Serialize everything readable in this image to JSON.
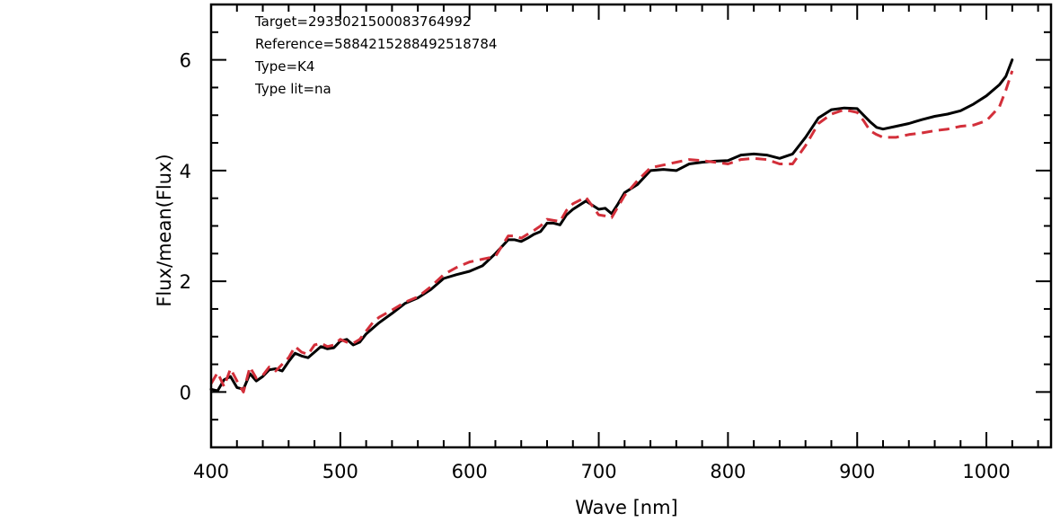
{
  "chart_data": {
    "type": "line",
    "title": "",
    "xlabel": "Wave [nm]",
    "ylabel": "Flux/mean(Flux)",
    "xlim": [
      400,
      1050
    ],
    "ylim": [
      -1,
      7
    ],
    "x_major_ticks": [
      400,
      500,
      600,
      700,
      800,
      900,
      1000
    ],
    "x_tick_labels": [
      "400",
      "500",
      "600",
      "700",
      "800",
      "900",
      "1000"
    ],
    "x_minor_step": 20,
    "y_major_ticks": [
      0,
      2,
      4,
      6
    ],
    "y_tick_labels": [
      "0",
      "2",
      "4",
      "6"
    ],
    "y_minor_step": 0.5,
    "grid": false,
    "annotations": [
      "Target=2935021500083764992",
      "Reference=5884215288492518784",
      "Type=K4",
      "Type lit=na"
    ],
    "series": [
      {
        "style": "solid",
        "color": "#000000",
        "x": [
          400,
          405,
          410,
          415,
          420,
          425,
          430,
          435,
          440,
          445,
          450,
          455,
          460,
          465,
          470,
          475,
          480,
          485,
          490,
          495,
          500,
          505,
          510,
          515,
          520,
          525,
          530,
          540,
          550,
          560,
          570,
          580,
          590,
          600,
          610,
          620,
          630,
          635,
          640,
          645,
          650,
          655,
          660,
          665,
          670,
          675,
          680,
          690,
          700,
          705,
          710,
          715,
          720,
          730,
          740,
          750,
          760,
          770,
          780,
          790,
          800,
          810,
          820,
          830,
          840,
          850,
          860,
          870,
          880,
          890,
          900,
          905,
          910,
          915,
          920,
          930,
          940,
          950,
          960,
          970,
          980,
          990,
          1000,
          1010,
          1015,
          1020
        ],
        "y": [
          0.05,
          0.02,
          0.22,
          0.28,
          0.08,
          0.05,
          0.33,
          0.2,
          0.28,
          0.4,
          0.42,
          0.38,
          0.55,
          0.7,
          0.65,
          0.62,
          0.72,
          0.82,
          0.78,
          0.8,
          0.92,
          0.95,
          0.85,
          0.9,
          1.05,
          1.15,
          1.25,
          1.42,
          1.6,
          1.7,
          1.85,
          2.05,
          2.12,
          2.18,
          2.28,
          2.5,
          2.75,
          2.75,
          2.72,
          2.78,
          2.85,
          2.9,
          3.05,
          3.05,
          3.02,
          3.2,
          3.3,
          3.45,
          3.3,
          3.32,
          3.22,
          3.4,
          3.6,
          3.75,
          4.0,
          4.02,
          4.0,
          4.12,
          4.15,
          4.17,
          4.18,
          4.28,
          4.3,
          4.28,
          4.22,
          4.3,
          4.6,
          4.95,
          5.1,
          5.13,
          5.12,
          5.0,
          4.88,
          4.78,
          4.75,
          4.8,
          4.85,
          4.92,
          4.98,
          5.02,
          5.08,
          5.2,
          5.35,
          5.55,
          5.7,
          6.0
        ]
      },
      {
        "style": "dashed",
        "color": "#d32f3a",
        "x": [
          400,
          405,
          410,
          415,
          420,
          425,
          430,
          435,
          440,
          445,
          450,
          455,
          460,
          465,
          470,
          475,
          480,
          485,
          490,
          495,
          500,
          505,
          510,
          515,
          520,
          525,
          530,
          540,
          550,
          560,
          570,
          580,
          590,
          600,
          610,
          620,
          630,
          635,
          640,
          645,
          650,
          655,
          660,
          665,
          670,
          675,
          680,
          690,
          700,
          705,
          710,
          715,
          720,
          730,
          740,
          750,
          760,
          770,
          780,
          790,
          800,
          810,
          820,
          830,
          840,
          850,
          860,
          870,
          880,
          890,
          900,
          905,
          910,
          915,
          920,
          930,
          940,
          950,
          960,
          970,
          980,
          990,
          1000,
          1010,
          1015,
          1020
        ],
        "y": [
          0.15,
          0.35,
          0.1,
          0.42,
          0.2,
          0.0,
          0.45,
          0.25,
          0.3,
          0.45,
          0.38,
          0.5,
          0.62,
          0.82,
          0.72,
          0.68,
          0.85,
          0.88,
          0.82,
          0.85,
          0.95,
          0.9,
          0.88,
          0.95,
          1.1,
          1.25,
          1.35,
          1.48,
          1.62,
          1.72,
          1.9,
          2.12,
          2.25,
          2.35,
          2.4,
          2.45,
          2.82,
          2.82,
          2.78,
          2.85,
          2.92,
          3.0,
          3.12,
          3.1,
          3.08,
          3.28,
          3.4,
          3.52,
          3.2,
          3.18,
          3.15,
          3.35,
          3.55,
          3.82,
          4.05,
          4.1,
          4.15,
          4.2,
          4.18,
          4.15,
          4.12,
          4.2,
          4.22,
          4.2,
          4.12,
          4.12,
          4.45,
          4.85,
          5.02,
          5.1,
          5.05,
          4.9,
          4.72,
          4.65,
          4.6,
          4.6,
          4.65,
          4.68,
          4.72,
          4.75,
          4.8,
          4.82,
          4.9,
          5.15,
          5.45,
          5.8
        ]
      }
    ]
  }
}
